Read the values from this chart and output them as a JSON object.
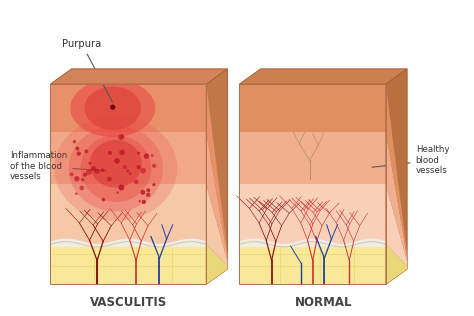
{
  "bg_color": "#ffffff",
  "vasculitis_label": "VASCULITIS",
  "normal_label": "NORMAL",
  "purpura_label": "Purpura",
  "inflammation_label": "Inflammation\nof the blood\nvessels",
  "healthy_label": "Healthy\nblood\nvessels",
  "top_face_v": "#d4845a",
  "top_face_n": "#cc8050",
  "side_face_v": "#c07848",
  "side_face_n": "#b87040",
  "skin_top_v": "#e8906a",
  "skin_top_n": "#e09060",
  "skin_mid_v": "#f0a888",
  "skin_mid_n": "#f0b090",
  "dermis_v": "#f5c8a8",
  "dermis_n": "#f8d0b8",
  "white_layer": "#f0ece0",
  "fat_color": "#f8e898",
  "fat_border": "#e8d870",
  "vessel_red1": "#aa2020",
  "vessel_red2": "#cc3030",
  "vessel_red3": "#8b1010",
  "vessel_blue": "#2040a0",
  "vessel_tan": "#c09060",
  "infl_red1": "#e84040",
  "infl_red2": "#d02020",
  "dot_red": "#c01828",
  "purpura_dot": "#6b0010",
  "purpura_blush": "#e04060"
}
